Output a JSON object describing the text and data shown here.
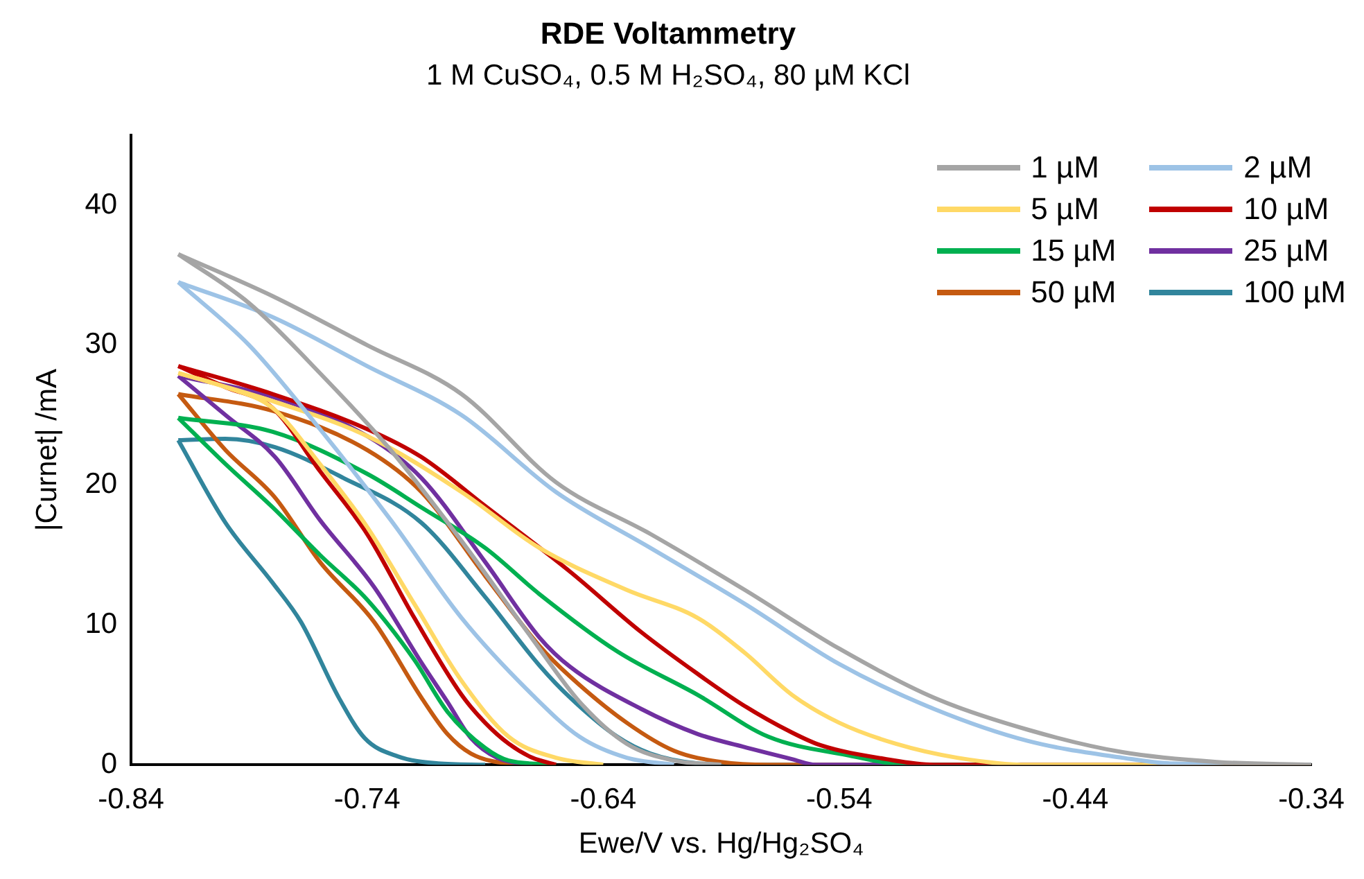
{
  "chart_data": {
    "type": "line",
    "title": "RDE Voltammetry",
    "subtitle": "1 M CuSO₄, 0.5 M H₂SO₄, 80 µM KCl",
    "xlabel": "Ewe/V vs. Hg/Hg₂SO₄",
    "ylabel": "|Curnet| /mA",
    "xlim": [
      -0.84,
      -0.34
    ],
    "xticks": [
      -0.84,
      -0.74,
      -0.64,
      -0.54,
      -0.44,
      -0.34
    ],
    "ylim": [
      0,
      45
    ],
    "yticks": [
      0,
      10,
      20,
      30,
      40
    ],
    "grid": false,
    "legend": "top right",
    "marker": "none",
    "line_style": "solid",
    "series": [
      {
        "name": "1 µM",
        "color": "#a5a5a5",
        "x": [
          -0.82,
          -0.78,
          -0.74,
          -0.7,
          -0.66,
          -0.62,
          -0.58,
          -0.54,
          -0.5,
          -0.46,
          -0.42,
          -0.38,
          -0.34
        ],
        "values": [
          36.5,
          33.5,
          30,
          26.5,
          20.2,
          16.5,
          12.5,
          8.3,
          4.8,
          2.5,
          0.9,
          0.2,
          0
        ]
      },
      {
        "color": "#a5a5a5",
        "x": [
          -0.82,
          -0.79,
          -0.76,
          -0.73,
          -0.7,
          -0.67,
          -0.65,
          -0.63,
          -0.61,
          -0.59
        ],
        "values": [
          36.5,
          33,
          28,
          22.5,
          16,
          9,
          4.5,
          1.5,
          0.3,
          0
        ]
      },
      {
        "name": "2 µM",
        "color": "#9dc3e6",
        "x": [
          -0.82,
          -0.78,
          -0.74,
          -0.7,
          -0.66,
          -0.62,
          -0.58,
          -0.54,
          -0.5,
          -0.46,
          -0.42,
          -0.4,
          -0.34
        ],
        "values": [
          34.5,
          32,
          28.5,
          25,
          19.5,
          15.5,
          11.5,
          7.2,
          4,
          1.7,
          0.5,
          0.1,
          0
        ]
      },
      {
        "color": "#9dc3e6",
        "x": [
          -0.82,
          -0.79,
          -0.76,
          -0.73,
          -0.7,
          -0.67,
          -0.65,
          -0.63,
          -0.61
        ],
        "values": [
          34.5,
          30,
          24,
          17.5,
          10.5,
          5,
          2,
          0.5,
          0
        ]
      },
      {
        "name": "5 µM",
        "color": "#ffd966",
        "x": [
          -0.82,
          -0.78,
          -0.74,
          -0.7,
          -0.667,
          -0.63,
          -0.6,
          -0.58,
          -0.56,
          -0.54,
          -0.516,
          -0.49,
          -0.46,
          -0.34
        ],
        "values": [
          28,
          26,
          23.5,
          19.5,
          15.5,
          12.5,
          10.5,
          8,
          5,
          3,
          1.5,
          0.5,
          0,
          0
        ]
      },
      {
        "color": "#ffd966",
        "x": [
          -0.82,
          -0.8,
          -0.78,
          -0.76,
          -0.74,
          -0.72,
          -0.7,
          -0.68,
          -0.66,
          -0.64
        ],
        "values": [
          28,
          27,
          25.5,
          21.5,
          17,
          11.5,
          6,
          2,
          0.5,
          0
        ]
      },
      {
        "name": "10 µM",
        "color": "#c00000",
        "x": [
          -0.82,
          -0.78,
          -0.74,
          -0.717,
          -0.69,
          -0.654,
          -0.624,
          -0.6,
          -0.581,
          -0.56,
          -0.548,
          -0.52,
          -0.5,
          -0.34
        ],
        "values": [
          28.5,
          26.5,
          24,
          22,
          18.5,
          13.8,
          9.5,
          6.5,
          4.3,
          2.3,
          1.4,
          0.4,
          0,
          0
        ]
      },
      {
        "color": "#c00000",
        "x": [
          -0.82,
          -0.8,
          -0.78,
          -0.76,
          -0.74,
          -0.72,
          -0.7,
          -0.69,
          -0.68,
          -0.67,
          -0.66
        ],
        "values": [
          28.5,
          27,
          25.5,
          21,
          16.5,
          10.5,
          5,
          3,
          1.5,
          0.5,
          0
        ]
      },
      {
        "name": "15 µM",
        "color": "#00b050",
        "x": [
          -0.82,
          -0.78,
          -0.74,
          -0.717,
          -0.69,
          -0.667,
          -0.634,
          -0.6,
          -0.57,
          -0.537,
          -0.51,
          -0.34
        ],
        "values": [
          24.8,
          23.8,
          20.8,
          18.4,
          15.5,
          12.2,
          8.1,
          5,
          2,
          0.7,
          0,
          0
        ]
      },
      {
        "color": "#00b050",
        "x": [
          -0.82,
          -0.8,
          -0.78,
          -0.76,
          -0.74,
          -0.72,
          -0.706,
          -0.69,
          -0.68,
          -0.66
        ],
        "values": [
          24.8,
          21.5,
          18.4,
          15,
          11.8,
          7.5,
          3.8,
          1.2,
          0.3,
          0
        ]
      },
      {
        "name": "25 µM",
        "color": "#7030a0",
        "x": [
          -0.82,
          -0.78,
          -0.74,
          -0.717,
          -0.69,
          -0.667,
          -0.654,
          -0.624,
          -0.6,
          -0.581,
          -0.56,
          -0.55,
          -0.34
        ],
        "values": [
          27.8,
          26.3,
          23.5,
          20.5,
          14.5,
          9.1,
          7,
          4,
          2.2,
          1.3,
          0.4,
          0,
          0
        ]
      },
      {
        "color": "#7030a0",
        "x": [
          -0.82,
          -0.8,
          -0.779,
          -0.76,
          -0.737,
          -0.717,
          -0.706,
          -0.696,
          -0.685,
          -0.67
        ],
        "values": [
          27.8,
          25,
          22,
          17.5,
          12.7,
          7.3,
          4.5,
          1.9,
          0.5,
          0
        ]
      },
      {
        "name": "50 µM",
        "color": "#c55a11",
        "x": [
          -0.82,
          -0.78,
          -0.74,
          -0.717,
          -0.69,
          -0.667,
          -0.654,
          -0.63,
          -0.61,
          -0.59,
          -0.57,
          -0.34
        ],
        "values": [
          26.5,
          25.3,
          22.5,
          19.5,
          13.5,
          8.5,
          6.3,
          3,
          1,
          0.2,
          0,
          0
        ]
      },
      {
        "color": "#c55a11",
        "x": [
          -0.82,
          -0.8,
          -0.779,
          -0.76,
          -0.737,
          -0.717,
          -0.706,
          -0.696,
          -0.68,
          -0.66
        ],
        "values": [
          26.5,
          22.5,
          19.1,
          14.5,
          10.2,
          4.8,
          2.2,
          0.8,
          0.1,
          0
        ]
      },
      {
        "name": "100 µM",
        "color": "#31859c",
        "x": [
          -0.82,
          -0.8,
          -0.779,
          -0.75,
          -0.717,
          -0.69,
          -0.667,
          -0.654,
          -0.634,
          -0.62,
          -0.6,
          -0.58,
          -0.34
        ],
        "values": [
          23.2,
          23.3,
          22.7,
          20.5,
          17.3,
          12,
          7.1,
          4.8,
          2,
          0.8,
          0.1,
          0,
          0
        ]
      },
      {
        "color": "#31859c",
        "x": [
          -0.82,
          -0.8,
          -0.78,
          -0.768,
          -0.752,
          -0.741,
          -0.727,
          -0.71,
          -0.69
        ],
        "values": [
          23.2,
          17.3,
          13,
          10.2,
          4.8,
          1.9,
          0.6,
          0.1,
          0
        ]
      }
    ]
  }
}
